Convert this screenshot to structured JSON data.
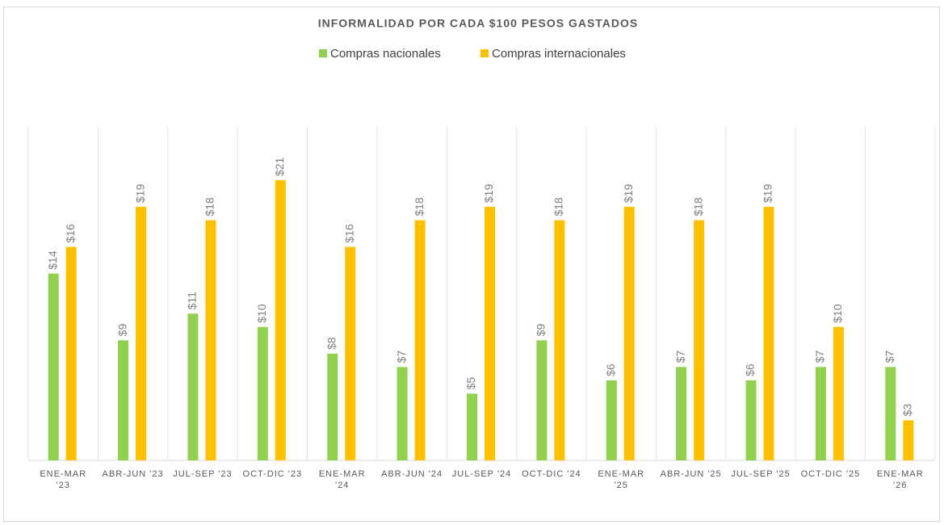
{
  "chart_data": {
    "type": "bar",
    "title": "INFORMALIDAD POR CADA $100 PESOS GASTADOS",
    "categories": [
      "ENE-MAR '23",
      "ABR-JUN '23",
      "JUL-SEP '23",
      "OCT-DIC '23",
      "ENE-MAR '24",
      "ABR-JUN '24",
      "JUL-SEP '24",
      "OCT-DIC '24",
      "ENE-MAR '25",
      "ABR-JUN '25",
      "JUL-SEP '25",
      "OCT-DIC '25",
      "ENE-MAR '26"
    ],
    "series": [
      {
        "name": "Compras nacionales",
        "color": "#92d050",
        "values": [
          14,
          9,
          11,
          10,
          8,
          7,
          5,
          9,
          6,
          7,
          6,
          7,
          7
        ],
        "value_labels": [
          "$14",
          "$9",
          "$11",
          "$10",
          "$8",
          "$7",
          "$5",
          "$9",
          "$6",
          "$7",
          "$6",
          "$7",
          "$7"
        ]
      },
      {
        "name": "Compras internacionales",
        "color": "#ffc000",
        "values": [
          16,
          19,
          18,
          21,
          16,
          18,
          19,
          18,
          19,
          18,
          19,
          10,
          3
        ],
        "value_labels": [
          "$16",
          "$19",
          "$18",
          "$21",
          "$16",
          "$18",
          "$19",
          "$18",
          "$19",
          "$18",
          "$19",
          "$10",
          "$3"
        ]
      }
    ],
    "ylim": [
      0,
      25
    ],
    "legend": "top"
  }
}
